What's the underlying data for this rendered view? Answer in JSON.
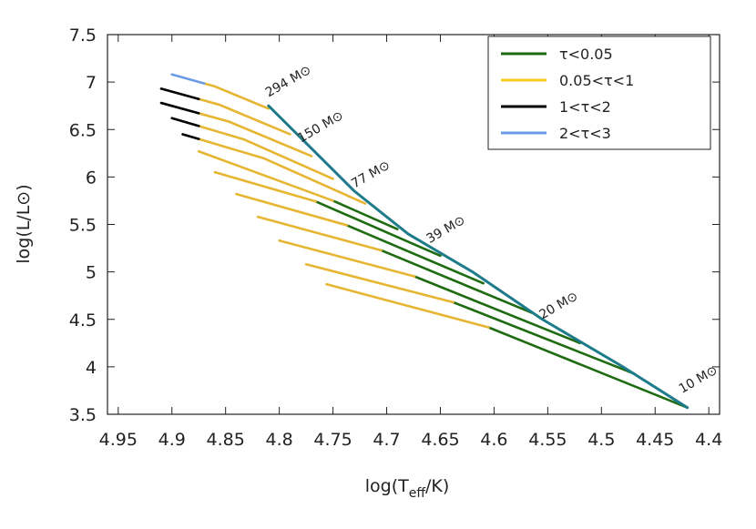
{
  "chart_data": {
    "type": "line",
    "xlabel": {
      "pre": "log(T",
      "sub": "eff",
      "post": "/K)"
    },
    "ylabel": "log(L/L⊙)",
    "xlim": [
      4.96,
      4.39
    ],
    "ylim": [
      3.5,
      7.5
    ],
    "xticks": [
      4.95,
      4.9,
      4.85,
      4.8,
      4.75,
      4.7,
      4.65,
      4.6,
      4.55,
      4.5,
      4.45,
      4.4
    ],
    "yticks": [
      3.5,
      4,
      4.5,
      5,
      5.5,
      6,
      6.5,
      7,
      7.5
    ],
    "legend_position": "upper right",
    "series": [
      {
        "name": "τ<0.05",
        "color": "#1e6b12"
      },
      {
        "name": "0.05<τ<1",
        "color": "#f2cf1f"
      },
      {
        "name": "1<τ<2",
        "color": "#000000"
      },
      {
        "name": "2<τ<3",
        "color": "#6a9be6"
      }
    ],
    "zams": {
      "color": "#1d7b8a",
      "x": [
        4.42,
        4.48,
        4.555,
        4.62,
        4.68,
        4.73,
        4.77,
        4.81
      ],
      "y": [
        3.57,
        4.0,
        4.5,
        5.0,
        5.4,
        5.85,
        6.3,
        6.75
      ]
    },
    "tracks": [
      {
        "segments": [
          {
            "series": 0,
            "x": [
              4.42,
              4.605
            ],
            "y": [
              3.57,
              4.415
            ]
          },
          {
            "series": 1,
            "x": [
              4.605,
              4.756
            ],
            "y": [
              4.415,
              4.87
            ]
          }
        ]
      },
      {
        "segments": [
          {
            "series": 0,
            "x": [
              4.47,
              4.638
            ],
            "y": [
              3.93,
              4.68
            ]
          },
          {
            "series": 1,
            "x": [
              4.638,
              4.775
            ],
            "y": [
              4.68,
              5.08
            ]
          }
        ]
      },
      {
        "segments": [
          {
            "series": 0,
            "x": [
              4.52,
              4.674
            ],
            "y": [
              4.25,
              4.952
            ]
          },
          {
            "series": 1,
            "x": [
              4.674,
              4.8
            ],
            "y": [
              4.952,
              5.33
            ]
          }
        ]
      },
      {
        "segments": [
          {
            "series": 0,
            "x": [
              4.565,
              4.705
            ],
            "y": [
              4.57,
              5.227
            ]
          },
          {
            "series": 1,
            "x": [
              4.705,
              4.82
            ],
            "y": [
              5.227,
              5.58
            ]
          }
        ]
      },
      {
        "segments": [
          {
            "series": 0,
            "x": [
              4.61,
              4.737
            ],
            "y": [
              4.88,
              5.491
            ]
          },
          {
            "series": 1,
            "x": [
              4.737,
              4.84
            ],
            "y": [
              5.491,
              5.82
            ]
          }
        ]
      },
      {
        "segments": [
          {
            "series": 0,
            "x": [
              4.65,
              4.766
            ],
            "y": [
              5.17,
              5.742
            ]
          },
          {
            "series": 1,
            "x": [
              4.766,
              4.86
            ],
            "y": [
              5.742,
              6.05
            ]
          }
        ]
      },
      {
        "segments": [
          {
            "series": 0,
            "x": [
              4.69,
              4.75
            ],
            "y": [
              5.45,
              5.75
            ]
          },
          {
            "series": 1,
            "x": [
              4.75,
              4.875
            ],
            "y": [
              5.75,
              6.27
            ]
          }
        ]
      },
      {
        "segments": [
          {
            "series": 1,
            "x": [
              4.72,
              4.814,
              4.875
            ],
            "y": [
              5.72,
              6.195,
              6.4
            ]
          },
          {
            "series": 2,
            "x": [
              4.875,
              4.89
            ],
            "y": [
              6.4,
              6.45
            ]
          }
        ]
      },
      {
        "segments": [
          {
            "series": 1,
            "x": [
              4.75,
              4.833,
              4.875
            ],
            "y": [
              5.98,
              6.396,
              6.537
            ]
          },
          {
            "series": 2,
            "x": [
              4.875,
              4.9
            ],
            "y": [
              6.537,
              6.62
            ]
          }
        ]
      },
      {
        "segments": [
          {
            "series": 1,
            "x": [
              4.77,
              4.847,
              4.875
            ],
            "y": [
              6.22,
              6.584,
              6.671
            ]
          },
          {
            "series": 2,
            "x": [
              4.875,
              4.91
            ],
            "y": [
              6.671,
              6.78
            ]
          }
        ]
      },
      {
        "segments": [
          {
            "series": 1,
            "x": [
              4.79,
              4.856,
              4.875
            ],
            "y": [
              6.45,
              6.762,
              6.821
            ]
          },
          {
            "series": 2,
            "x": [
              4.875,
              4.91
            ],
            "y": [
              6.821,
              6.93
            ]
          }
        ]
      },
      {
        "segments": [
          {
            "series": 1,
            "x": [
              4.81,
              4.86,
              4.87
            ],
            "y": [
              6.72,
              6.954,
              6.986
            ]
          },
          {
            "series": 3,
            "x": [
              4.87,
              4.9
            ],
            "y": [
              6.986,
              7.08
            ]
          }
        ]
      }
    ],
    "annotations": [
      {
        "text": "294 M⊙",
        "x": 4.81,
        "y": 6.84
      },
      {
        "text": "150 M⊙",
        "x": 4.78,
        "y": 6.36
      },
      {
        "text": "77 M⊙",
        "x": 4.73,
        "y": 5.88
      },
      {
        "text": "39 M⊙",
        "x": 4.66,
        "y": 5.3
      },
      {
        "text": "20 M⊙",
        "x": 4.555,
        "y": 4.5
      },
      {
        "text": "10 M⊙",
        "x": 4.425,
        "y": 3.72
      }
    ]
  }
}
